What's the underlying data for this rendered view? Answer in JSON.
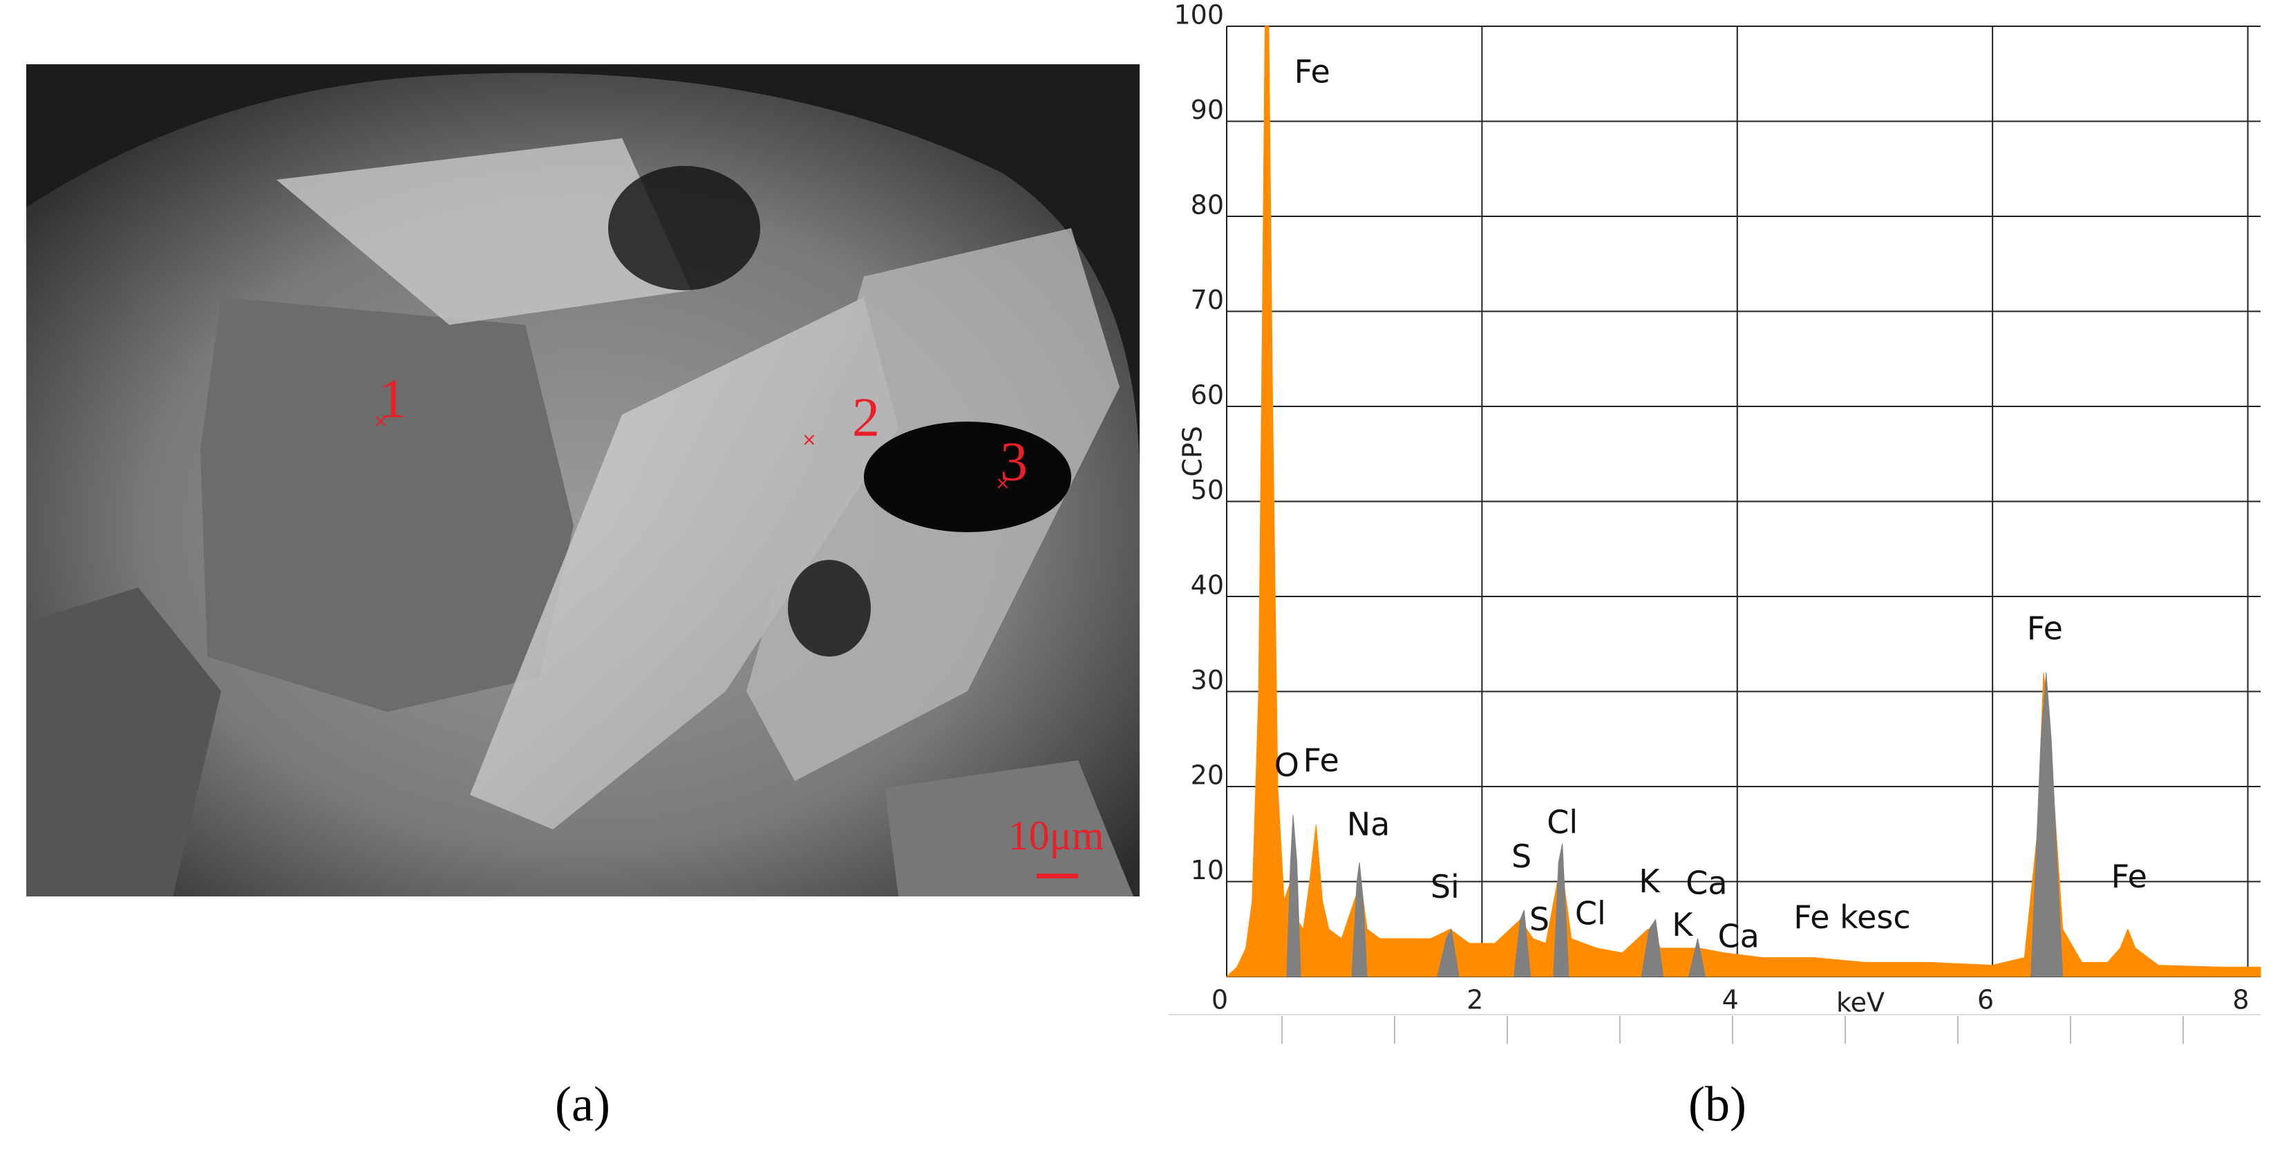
{
  "chart_data": {
    "type": "area",
    "y_label": "CPS",
    "x_label": "keV",
    "xlim": [
      0,
      8.1
    ],
    "ylim": [
      0,
      100
    ],
    "xticks": [
      0,
      2,
      4,
      6,
      8
    ],
    "yticks": [
      10,
      20,
      30,
      40,
      50,
      60,
      70,
      80,
      90,
      100
    ],
    "grid": true,
    "series": [
      {
        "color": "#ff8c00",
        "x": [
          0.0,
          0.08,
          0.15,
          0.2,
          0.25,
          0.28,
          0.3,
          0.33,
          0.36,
          0.4,
          0.45,
          0.5,
          0.55,
          0.6,
          0.65,
          0.7,
          0.75,
          0.8,
          0.9,
          1.0,
          1.05,
          1.1,
          1.2,
          1.4,
          1.6,
          1.75,
          1.9,
          2.1,
          2.3,
          2.4,
          2.5,
          2.62,
          2.7,
          2.9,
          3.1,
          3.3,
          3.4,
          3.7,
          3.9,
          4.2,
          4.6,
          5.0,
          5.5,
          6.0,
          6.25,
          6.35,
          6.4,
          6.45,
          6.55,
          6.7,
          6.9,
          7.0,
          7.06,
          7.12,
          7.3,
          7.8,
          8.1
        ],
        "values": [
          0,
          1,
          3,
          8,
          30,
          70,
          100,
          100,
          60,
          20,
          8,
          10,
          6,
          5,
          10,
          16,
          8,
          5,
          4,
          8,
          10,
          5,
          4,
          4,
          4,
          5,
          3.5,
          3.5,
          6,
          4,
          3.5,
          12,
          4,
          3,
          2.5,
          5,
          3,
          3,
          2.5,
          2,
          2,
          1.5,
          1.5,
          1.2,
          2,
          15,
          32,
          25,
          5,
          1.5,
          1.5,
          3,
          5,
          3,
          1.2,
          1,
          1
        ]
      },
      {
        "color": "#808080",
        "x": [
          0.47,
          0.5,
          0.52,
          0.55,
          0.58,
          0.6,
          0.98,
          1.02,
          1.04,
          1.07,
          1.1,
          1.2,
          1.65,
          1.72,
          1.76,
          1.82,
          1.9,
          2.25,
          2.3,
          2.33,
          2.38,
          2.45,
          2.56,
          2.6,
          2.63,
          2.68,
          2.8,
          3.25,
          3.31,
          3.36,
          3.42,
          3.5,
          3.62,
          3.69,
          3.75,
          4.0,
          6.3,
          6.38,
          6.42,
          6.46,
          6.55
        ],
        "values": [
          0,
          12,
          17,
          12,
          0,
          null,
          0,
          10,
          12,
          8,
          0,
          null,
          0,
          4,
          5,
          0,
          null,
          0,
          6,
          7,
          0,
          null,
          0,
          12,
          14,
          0,
          null,
          0,
          5,
          6,
          0,
          null,
          0,
          4,
          0,
          null,
          0,
          25,
          32,
          25,
          0
        ]
      }
    ],
    "annotations": [
      {
        "text": "Fe",
        "x": 0.67,
        "y": 95
      },
      {
        "text": "O",
        "x": 0.47,
        "y": 22
      },
      {
        "text": "Fe",
        "x": 0.74,
        "y": 22.5
      },
      {
        "text": "Na",
        "x": 1.11,
        "y": 15.8
      },
      {
        "text": "Si",
        "x": 1.71,
        "y": 9.2
      },
      {
        "text": "S",
        "x": 2.31,
        "y": 12.4
      },
      {
        "text": "S",
        "x": 2.45,
        "y": 5.8
      },
      {
        "text": "Cl",
        "x": 2.63,
        "y": 16
      },
      {
        "text": "Cl",
        "x": 2.85,
        "y": 6.4
      },
      {
        "text": "K",
        "x": 3.31,
        "y": 9.8
      },
      {
        "text": "Ca",
        "x": 3.76,
        "y": 9.6
      },
      {
        "text": "K",
        "x": 3.57,
        "y": 5.2
      },
      {
        "text": "Ca",
        "x": 4.01,
        "y": 4.0
      },
      {
        "text": "Fe kesc",
        "x": 4.9,
        "y": 6.0
      },
      {
        "text": "Fe",
        "x": 6.41,
        "y": 36.4
      },
      {
        "text": "Fe",
        "x": 7.07,
        "y": 10.3
      }
    ]
  },
  "image": {
    "points": [
      "1",
      "2",
      "3"
    ],
    "scale_bar": "10μm"
  },
  "panel_labels": [
    "(a)",
    "(b)"
  ]
}
